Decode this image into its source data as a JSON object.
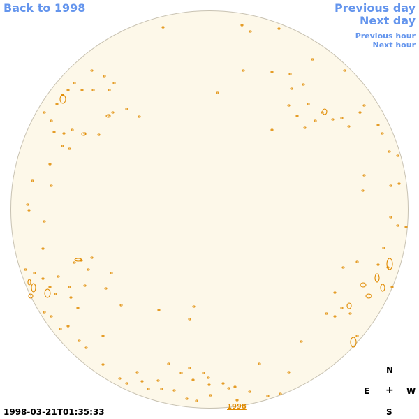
{
  "nav": {
    "back_label": "Back to 1998",
    "prev_day_label": "Previous day",
    "next_day_label": "Next day",
    "prev_hour_label": "Previous hour",
    "next_hour_label": "Next hour"
  },
  "image": {
    "timestamp": "1998-03-21T01:35:33",
    "year_link": "1998"
  },
  "compass": {
    "north": "N",
    "east": "E",
    "west": "W",
    "south": "S",
    "center": "+"
  },
  "colors": {
    "link": "#6495ed",
    "disk_fill": "#fdf8e9",
    "contour": "#e08a00"
  }
}
